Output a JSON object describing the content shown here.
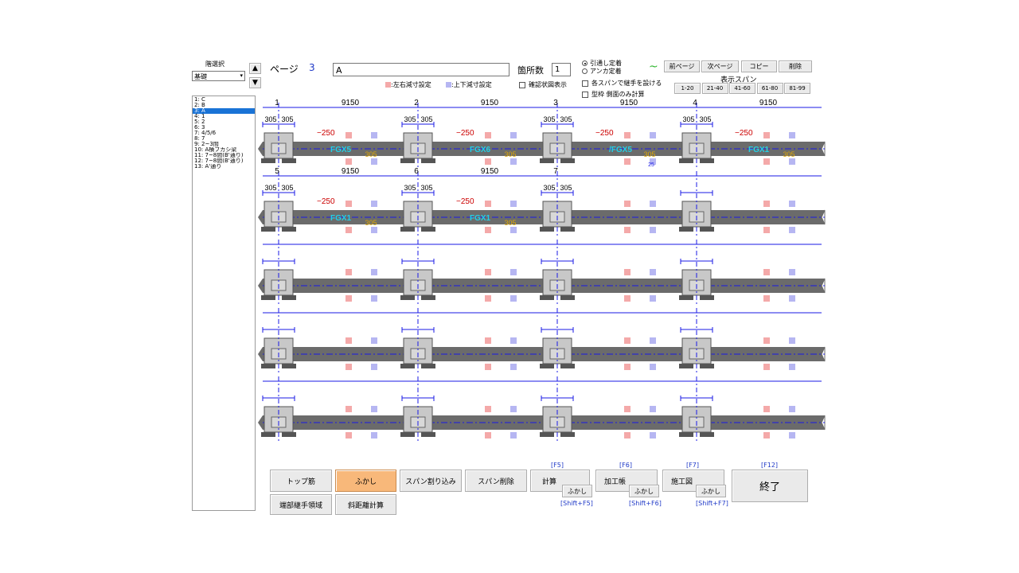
{
  "floor_select": {
    "label": "階選択",
    "value": "基礎"
  },
  "floors": [
    "1: C",
    "2: B",
    "3: A",
    "4: 1",
    "5: 2",
    "6: 3",
    "7: 4/5/6",
    "8: 7",
    "9: 2~3間",
    "10: A横フカシ梁",
    "11: 7~8間(B'通り)",
    "12: 7~8間(B'通り)",
    "13: A'通り"
  ],
  "selected_floor_index": 2,
  "page": {
    "label": "ページ",
    "value": "3"
  },
  "name_field": "A",
  "count": {
    "label": "箇所数",
    "value": "1"
  },
  "legend": {
    "lr": ":左右減寸設定",
    "ud": ":上下減寸設定",
    "confirm": "確認状図表示"
  },
  "radio": {
    "opt1": "引通し定着",
    "opt2": "アンカ定着"
  },
  "checks": {
    "c1": "各スパンで継手を設ける",
    "c2": "型枠 側面のみ計算"
  },
  "top_buttons": {
    "tilde": "~",
    "prev": "前ページ",
    "next": "次ページ",
    "copy": "コピー",
    "delete": "削除"
  },
  "span_display": {
    "label": "表示スパン",
    "ranges": [
      "1-20",
      "21-40",
      "41-60",
      "61-80",
      "81-99"
    ]
  },
  "colors": {
    "beam": "#6b6b6b",
    "axis": "#1a1ae6",
    "fgx": "#22d0e6",
    "green": "#2db52d",
    "yellow": "#e0a800",
    "red": "#cc0000",
    "pink": "#f4a9a9",
    "lavender": "#b6b6f2"
  },
  "rows": [
    {
      "axes": [
        "1",
        "2",
        "3",
        "4"
      ],
      "spans": [
        "9150",
        "9150",
        "9150",
        "9150"
      ],
      "dims": [
        "305",
        "305",
        "305",
        "305"
      ],
      "minus": [
        "−250",
        "−250",
        "−250",
        "−250"
      ],
      "labels": [
        "FGX5",
        "FGX6",
        "/FGX5",
        "FGX1"
      ],
      "greens": [
        "",
        "",
        "",
        ""
      ],
      "yellows": [
        "305",
        "305",
        "305",
        "305"
      ],
      "small": [
        "",
        "",
        "25",
        ""
      ]
    },
    {
      "axes": [
        "5",
        "6",
        "7",
        ""
      ],
      "spans": [
        "9150",
        "9150",
        "",
        ""
      ],
      "dims": [
        "305",
        "305",
        "305",
        ""
      ],
      "minus": [
        "−250",
        "−250",
        "",
        ""
      ],
      "labels": [
        "FGX1",
        "FGX1",
        "",
        ""
      ],
      "greens": [
        "",
        "",
        "",
        ""
      ],
      "yellows": [
        "305",
        "305",
        "",
        ""
      ],
      "small": [
        "",
        "",
        "",
        ""
      ]
    },
    {
      "axes": [
        "",
        "",
        "",
        ""
      ],
      "spans": [
        "",
        "",
        "",
        ""
      ],
      "dims": [
        "",
        "",
        "",
        ""
      ],
      "minus": [
        "",
        "",
        "",
        ""
      ],
      "labels": [
        "",
        "",
        "",
        ""
      ],
      "greens": [
        "",
        "",
        "",
        ""
      ],
      "yellows": [
        "",
        "",
        "",
        ""
      ],
      "small": [
        "",
        "",
        "",
        ""
      ]
    },
    {
      "axes": [
        "",
        "",
        "",
        ""
      ],
      "spans": [
        "",
        "",
        "",
        ""
      ],
      "dims": [
        "",
        "",
        "",
        ""
      ],
      "minus": [
        "",
        "",
        "",
        ""
      ],
      "labels": [
        "",
        "",
        "",
        ""
      ],
      "greens": [
        "",
        "",
        "",
        ""
      ],
      "yellows": [
        "",
        "",
        "",
        ""
      ],
      "small": [
        "",
        "",
        "",
        ""
      ]
    },
    {
      "axes": [
        "",
        "",
        "",
        ""
      ],
      "spans": [
        "",
        "",
        "",
        ""
      ],
      "dims": [
        "",
        "",
        "",
        ""
      ],
      "minus": [
        "",
        "",
        "",
        ""
      ],
      "labels": [
        "",
        "",
        "",
        ""
      ],
      "greens": [
        "",
        "",
        "",
        ""
      ],
      "yellows": [
        "",
        "",
        "",
        ""
      ],
      "small": [
        "",
        "",
        "",
        ""
      ]
    }
  ],
  "bottom": {
    "top_bar": "トップ筋",
    "fukashi": "ふかし",
    "span_insert": "スパン割り込み",
    "span_delete": "スパン削除",
    "end_joint": "端部継手領域",
    "diagonal": "斜距離計算",
    "calc": "計算",
    "process": "加工帳",
    "construction": "施工図",
    "exit": "終了",
    "fukashi_small": "ふかし",
    "f5": "[F5]",
    "f6": "[F6]",
    "f7": "[F7]",
    "f12": "[F12]",
    "sf5": "[Shift+F5]",
    "sf6": "[Shift+F6]",
    "sf7": "[Shift+F7]"
  }
}
